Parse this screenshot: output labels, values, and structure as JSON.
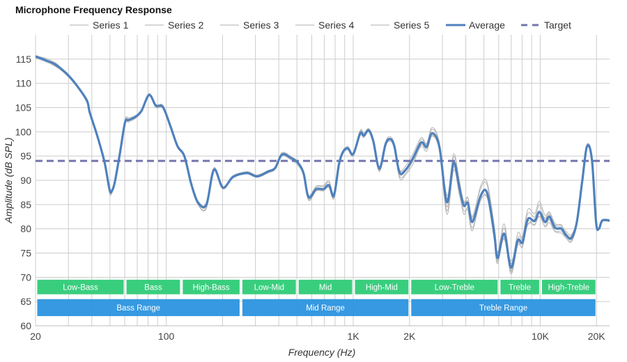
{
  "chart_data": {
    "type": "line",
    "title": "Microphone Frequency Response",
    "xlabel": "Frequency (Hz)",
    "ylabel": "Amplitude (dB SPL)",
    "xscale": "log",
    "xlim": [
      20,
      23500
    ],
    "ylim": [
      60,
      120
    ],
    "grid": true,
    "legend_position": "top-center",
    "x_ticks": [
      {
        "value": 20,
        "label": "20"
      },
      {
        "value": 100,
        "label": "100"
      },
      {
        "value": 1000,
        "label": "1K"
      },
      {
        "value": 2000,
        "label": "2K"
      },
      {
        "value": 10000,
        "label": "10K"
      },
      {
        "value": 20000,
        "label": "20K"
      }
    ],
    "x_minor_gridlines": [
      30,
      40,
      50,
      60,
      70,
      80,
      90,
      200,
      300,
      400,
      500,
      600,
      700,
      800,
      900,
      3000,
      4000,
      5000,
      6000,
      7000,
      8000,
      9000
    ],
    "y_ticks": [
      60,
      65,
      70,
      75,
      80,
      85,
      90,
      95,
      100,
      105,
      110,
      115
    ],
    "legend": [
      {
        "name": "Series 1",
        "style": "thin",
        "color": "#c8c8c8"
      },
      {
        "name": "Series 2",
        "style": "thin",
        "color": "#c8c8c8"
      },
      {
        "name": "Series 3",
        "style": "thin",
        "color": "#c8c8c8"
      },
      {
        "name": "Series 4",
        "style": "thin",
        "color": "#c8c8c8"
      },
      {
        "name": "Series 5",
        "style": "thin",
        "color": "#c8c8c8"
      },
      {
        "name": "Average",
        "style": "thick",
        "color": "#4f81bd"
      },
      {
        "name": "Target",
        "style": "dashed",
        "color": "#7474ad"
      }
    ],
    "target_db": 94,
    "x": [
      20,
      22.5,
      25.7,
      29.3,
      33,
      37.6,
      39,
      42.9,
      46.8,
      49.6,
      50.8,
      53,
      56.6,
      60.2,
      63,
      68.6,
      73.7,
      81,
      88,
      96,
      105,
      115,
      125,
      136,
      148,
      164,
      180,
      201,
      228,
      270,
      306,
      350,
      382,
      416,
      465,
      506,
      543,
      577,
      634,
      693,
      742,
      788,
      838,
      880,
      936,
      1000,
      1090,
      1140,
      1210,
      1280,
      1380,
      1490,
      1580,
      1660,
      1770,
      1920,
      2090,
      2310,
      2470,
      2640,
      2890,
      3170,
      3440,
      3680,
      3900,
      4100,
      4340,
      4800,
      5200,
      5680,
      5910,
      6420,
      6980,
      7580,
      8040,
      8590,
      9340,
      9900,
      10600,
      11200,
      12000,
      13000,
      13800,
      14700,
      15700,
      16800,
      17800,
      18900,
      19900,
      20600,
      21500,
      23500
    ],
    "series": [
      {
        "name": "Average",
        "values": [
          115.5,
          114.8,
          113.8,
          112,
          109.7,
          106.5,
          104,
          99,
          93.7,
          88.3,
          87.6,
          89.5,
          95.7,
          101.9,
          102.4,
          103.1,
          104.3,
          107.6,
          105.4,
          105.1,
          101.3,
          97,
          95,
          89.3,
          85.4,
          85,
          92.2,
          88.5,
          90.7,
          91.5,
          90.8,
          91.8,
          92.5,
          95.3,
          94.6,
          93.6,
          91.4,
          86.5,
          88.2,
          88.2,
          89,
          86.8,
          93.2,
          95.8,
          96.6,
          95.4,
          99.7,
          99.2,
          100.3,
          98.1,
          92.4,
          97.5,
          98.5,
          97,
          91.6,
          92.3,
          94.6,
          97.8,
          96.9,
          99.7,
          96.9,
          85.5,
          93.6,
          88.9,
          84.8,
          85.3,
          81.4,
          86.8,
          87.4,
          79,
          74,
          79,
          72,
          77.6,
          77.2,
          82,
          81.6,
          83.5,
          81.4,
          82.5,
          80.2,
          80,
          78.6,
          78.1,
          81.4,
          90,
          97,
          94.3,
          81.4,
          80,
          81.7,
          81.7
        ]
      },
      {
        "name": "Series 1",
        "offsets": [
          0.3,
          0.2,
          -0.2,
          0.1,
          0.3,
          -0.2,
          0.2,
          0.1,
          -0.3,
          -0.5,
          -0.3,
          0.2,
          0.1,
          0.4,
          0.3,
          -0.1,
          0.2,
          0.3,
          -0.2,
          0.3,
          0.1,
          0.2,
          0.1,
          -0.2,
          -0.4,
          -0.6,
          0.3,
          0.1,
          0.2,
          0.1,
          0.1,
          0.2,
          0.1,
          0.3,
          0.2,
          0.3,
          0.2,
          -0.3,
          0.4,
          0.5,
          0.6,
          0.4,
          0.2,
          0.3,
          0.2,
          0.1,
          0.4,
          0.3,
          0.4,
          0.2,
          -0.3,
          0.4,
          0.5,
          0.3,
          -0.4,
          0.2,
          0.3,
          0.6,
          0.5,
          0.8,
          0.6,
          -1.0,
          1.2,
          0.8,
          0.9,
          1.0,
          1.2,
          1.5,
          1.6,
          0.8,
          -0.5,
          1.2,
          -0.6,
          0.5,
          1.0,
          1.2,
          0.8,
          1.4,
          0.6,
          0.8,
          0.5,
          0.3,
          0.4,
          0.3,
          0.5,
          0.2,
          0.3,
          0.2,
          0.1,
          0.1,
          0.1,
          0.1
        ]
      },
      {
        "name": "Series 2",
        "offsets": [
          -0.2,
          -0.3,
          -0.4,
          -0.3,
          -0.2,
          -0.4,
          -0.3,
          -0.2,
          -0.3,
          -0.6,
          -0.5,
          -0.2,
          -0.2,
          -0.3,
          -0.4,
          -0.3,
          -0.2,
          -0.2,
          -0.4,
          -0.2,
          -0.3,
          -0.2,
          -0.3,
          -0.3,
          -0.5,
          -0.8,
          -0.2,
          -0.3,
          -0.2,
          -0.2,
          -0.2,
          -0.3,
          -0.2,
          -0.3,
          -0.4,
          -0.5,
          -0.4,
          -0.5,
          -0.3,
          -0.2,
          -0.3,
          -0.4,
          -0.5,
          -0.4,
          -0.3,
          -0.4,
          -0.5,
          -0.4,
          -0.3,
          -0.5,
          -0.6,
          -0.5,
          -0.4,
          -0.6,
          -0.8,
          -0.7,
          -0.6,
          -0.8,
          -0.9,
          -0.6,
          -0.8,
          -2.5,
          -1.5,
          -1.2,
          -1.8,
          -1.0,
          -1.2,
          -1.0,
          -0.9,
          -1.5,
          -1.2,
          -0.9,
          -1.3,
          -1.0,
          -0.8,
          -1.0,
          -0.7,
          -0.9,
          -0.8,
          -0.6,
          -0.7,
          -0.5,
          -0.6,
          -0.5,
          -0.4,
          -0.3,
          -0.2,
          -0.3,
          -0.2,
          -0.2,
          -0.2,
          -0.2
        ]
      },
      {
        "name": "Series 3",
        "offsets": [
          0.1,
          0.4,
          0.3,
          -0.1,
          0.2,
          0.1,
          -0.1,
          0.2,
          0.1,
          -0.2,
          0.1,
          0.3,
          0.2,
          0.6,
          0.5,
          0.2,
          0.1,
          0.2,
          0.1,
          0.4,
          0.2,
          0.1,
          0.2,
          0.1,
          0.3,
          0.2,
          0.4,
          0.2,
          0.3,
          0.2,
          0.3,
          0.2,
          0.3,
          0.4,
          0.3,
          0.2,
          0.1,
          0.4,
          0.6,
          0.7,
          0.9,
          0.5,
          0.3,
          0.2,
          0.4,
          0.3,
          0.6,
          0.5,
          0.3,
          0.4,
          0.5,
          0.3,
          0.2,
          0.4,
          0.6,
          0.8,
          0.9,
          1.0,
          0.7,
          1.2,
          0.9,
          0.8,
          1.8,
          1.5,
          0.6,
          1.2,
          0.9,
          2.0,
          2.2,
          1.6,
          1.0,
          2.0,
          0.8,
          1.5,
          1.2,
          2.0,
          1.5,
          2.2,
          1.4,
          1.0,
          0.9,
          0.6,
          0.8,
          0.7,
          0.4,
          0.3,
          0.4,
          0.3,
          0.2,
          0.2,
          0.2,
          0.2
        ]
      },
      {
        "name": "Series 4",
        "offsets": [
          -0.1,
          0.1,
          -0.3,
          0.2,
          -0.1,
          0.3,
          0.2,
          -0.1,
          0.2,
          0.3,
          0.2,
          -0.1,
          0.3,
          0.2,
          -0.1,
          0.2,
          0.3,
          0.1,
          0.2,
          -0.1,
          0.2,
          0.3,
          0.2,
          0.3,
          0.1,
          -0.3,
          0.1,
          -0.1,
          0.1,
          0.3,
          0.2,
          0.1,
          0.2,
          0.1,
          0.1,
          -0.2,
          -0.2,
          -0.6,
          -0.4,
          -0.3,
          -0.5,
          -0.6,
          -0.3,
          -0.2,
          -0.1,
          -0.3,
          -0.2,
          -0.1,
          0.1,
          -0.2,
          -0.4,
          -0.2,
          -0.1,
          -0.3,
          -1.2,
          -1.0,
          -1.2,
          -0.5,
          -0.4,
          -0.2,
          -0.5,
          -1.8,
          -0.8,
          -1.6,
          -1.0,
          -1.5,
          -1.8,
          -0.5,
          -0.2,
          -1.0,
          -0.8,
          -0.4,
          -0.9,
          -0.5,
          -1.0,
          -0.5,
          -0.9,
          -0.3,
          -1.0,
          -1.2,
          -0.8,
          -0.9,
          -0.6,
          -0.8,
          -0.5,
          -0.2,
          -0.3,
          -0.2,
          -0.1,
          -0.1,
          -0.1,
          -0.1
        ]
      },
      {
        "name": "Series 5",
        "offsets": [
          0.2,
          -0.2,
          0.4,
          -0.3,
          0.1,
          -0.1,
          0.1,
          0.0,
          0.3,
          0.6,
          0.4,
          0.1,
          -0.1,
          -0.2,
          0.1,
          0.3,
          -0.1,
          -0.2,
          0.3,
          0.1,
          -0.2,
          0.1,
          -0.1,
          0.2,
          -0.2,
          0.4,
          -0.2,
          0.2,
          0.0,
          -0.1,
          -0.1,
          0.1,
          0.0,
          0.1,
          0.0,
          0.1,
          0.3,
          0.5,
          -0.2,
          -0.4,
          -0.3,
          0.2,
          0.1,
          0.0,
          0.0,
          0.2,
          -0.1,
          0.0,
          -0.2,
          0.0,
          0.4,
          -0.3,
          -0.1,
          0.1,
          0.5,
          0.2,
          0.1,
          -0.2,
          0.2,
          -0.4,
          0.0,
          1.4,
          -0.4,
          0.6,
          0.8,
          0.4,
          0.6,
          -0.6,
          -1.0,
          1.0,
          1.2,
          -1.2,
          1.4,
          -0.6,
          0.8,
          -1.2,
          0.4,
          -1.0,
          0.9,
          0.4,
          0.6,
          0.8,
          -0.2,
          0.5,
          -0.3,
          0.1,
          -0.2,
          0.1,
          0.1,
          0.0,
          0.0,
          0.0
        ]
      }
    ],
    "bands": [
      {
        "label": "Low-Bass",
        "from": 20,
        "to": 60,
        "row": "sub",
        "color": "#33cc7a"
      },
      {
        "label": "Bass",
        "from": 60,
        "to": 120,
        "row": "sub",
        "color": "#33cc7a"
      },
      {
        "label": "High-Bass",
        "from": 120,
        "to": 250,
        "row": "sub",
        "color": "#33cc7a"
      },
      {
        "label": "Low-Mid",
        "from": 250,
        "to": 500,
        "row": "sub",
        "color": "#33cc7a"
      },
      {
        "label": "Mid",
        "from": 500,
        "to": 1000,
        "row": "sub",
        "color": "#33cc7a"
      },
      {
        "label": "High-Mid",
        "from": 1000,
        "to": 2000,
        "row": "sub",
        "color": "#33cc7a"
      },
      {
        "label": "Low-Treble",
        "from": 2000,
        "to": 6000,
        "row": "sub",
        "color": "#33cc7a"
      },
      {
        "label": "Treble",
        "from": 6000,
        "to": 10000,
        "row": "sub",
        "color": "#33cc7a"
      },
      {
        "label": "High-Treble",
        "from": 10000,
        "to": 20000,
        "row": "sub",
        "color": "#33cc7a"
      },
      {
        "label": "Bass Range",
        "from": 20,
        "to": 250,
        "row": "main",
        "color": "#2f96e0"
      },
      {
        "label": "Mid Range",
        "from": 250,
        "to": 2000,
        "row": "main",
        "color": "#2f96e0"
      },
      {
        "label": "Treble Range",
        "from": 2000,
        "to": 20000,
        "row": "main",
        "color": "#2f96e0"
      }
    ],
    "band_rows_db": {
      "sub": [
        66.5,
        69.5
      ],
      "main": [
        62,
        65.5
      ]
    }
  }
}
